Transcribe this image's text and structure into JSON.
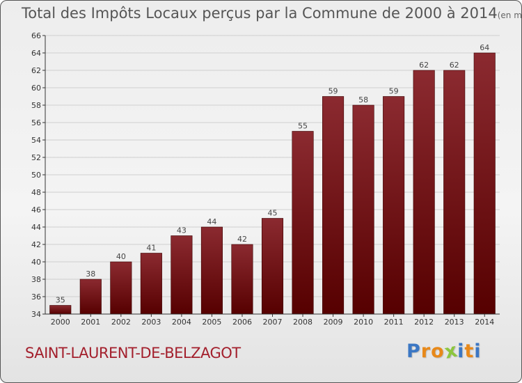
{
  "header": {
    "title": "Total des Impôts Locaux perçus par la Commune de 2000 à 2014",
    "unit": "(en milliers d'€)"
  },
  "footer": {
    "commune": "SAINT-LAURENT-DE-BELZAGOT",
    "logo": "Proxiti"
  },
  "colors": {
    "bar_top": "#8b2a30",
    "bar_bottom": "#560000",
    "commune_text": "#a31f2c",
    "logo_letters": [
      "#3b77c4",
      "#e8891a",
      "#e8891a",
      "#8dc63f",
      "#3b77c4",
      "#e8891a",
      "#3b77c4"
    ]
  },
  "chart_data": {
    "type": "bar",
    "title": "Total des Impôts Locaux perçus par la Commune de 2000 à 2014",
    "ylabel": "en milliers d'€",
    "xlabel": "",
    "categories": [
      "2000",
      "2001",
      "2002",
      "2003",
      "2004",
      "2005",
      "2006",
      "2007",
      "2008",
      "2009",
      "2010",
      "2011",
      "2012",
      "2013",
      "2014"
    ],
    "values": [
      35,
      38,
      40,
      41,
      43,
      44,
      42,
      45,
      55,
      59,
      58,
      59,
      62,
      62,
      64
    ],
    "ylim": [
      34,
      66
    ],
    "yticks": [
      34,
      36,
      38,
      40,
      42,
      44,
      46,
      48,
      50,
      52,
      54,
      56,
      58,
      60,
      62,
      64,
      66
    ],
    "grid": true
  }
}
